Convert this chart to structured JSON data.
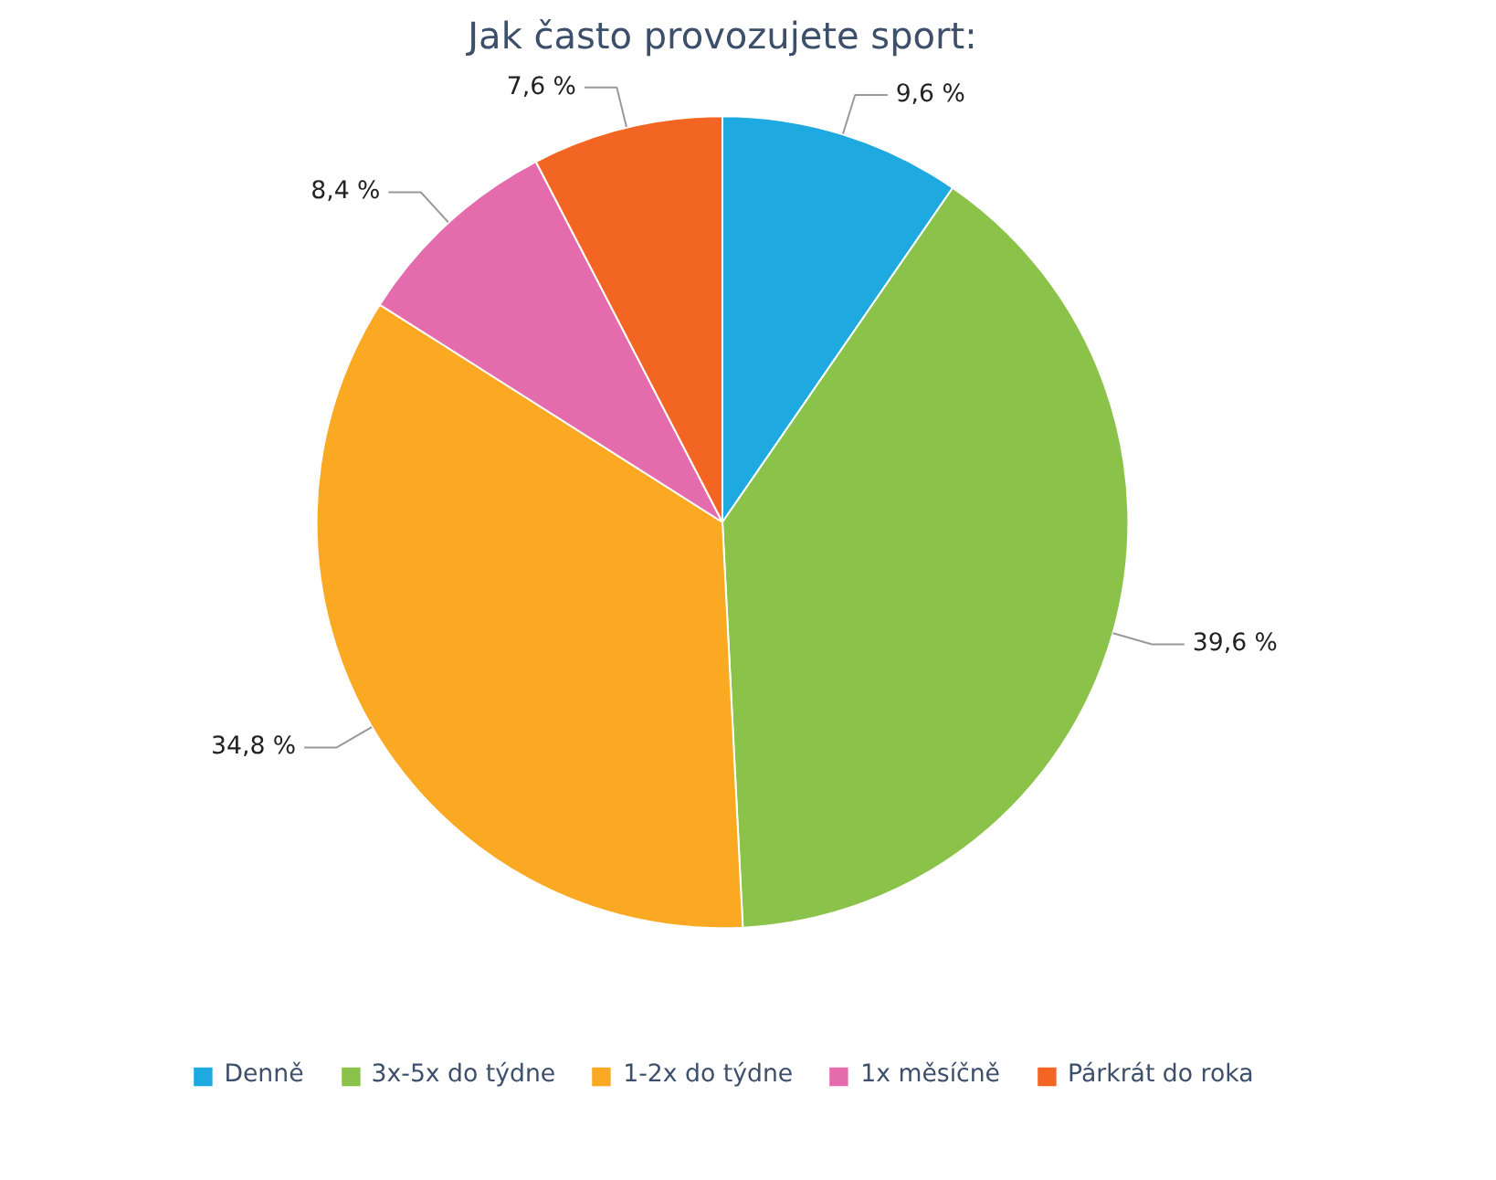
{
  "chart_data": {
    "type": "pie",
    "title": "Jak často provozujete sport:",
    "categories": [
      "Denně",
      "3x-5x do týdne",
      "1-2x do týdne",
      "1x měsíčně",
      "Párkrát do roka"
    ],
    "values": [
      9.6,
      39.6,
      34.8,
      8.4,
      7.6
    ],
    "colors": [
      "#1ea9e1",
      "#8bc34a",
      "#fba822",
      "#e56cac",
      "#f26522"
    ],
    "value_labels": [
      "9,6 %",
      "39,6 %",
      "34,8 %",
      "8,4 %",
      "7,6 %"
    ],
    "legend": "bottom"
  }
}
